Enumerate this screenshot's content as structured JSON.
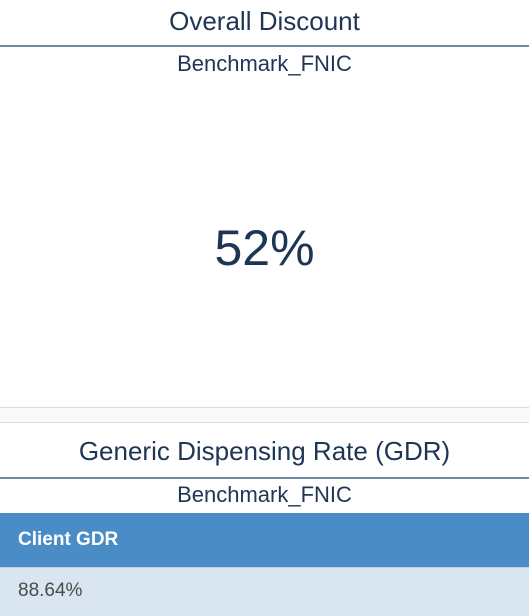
{
  "overall_discount": {
    "title": "Overall Discount",
    "subtitle": "Benchmark_FNIC",
    "value": "52%"
  },
  "gdr": {
    "title": "Generic Dispensing Rate (GDR)",
    "subtitle": "Benchmark_FNIC",
    "table": {
      "header": "Client GDR",
      "value": "88.64%"
    }
  }
}
